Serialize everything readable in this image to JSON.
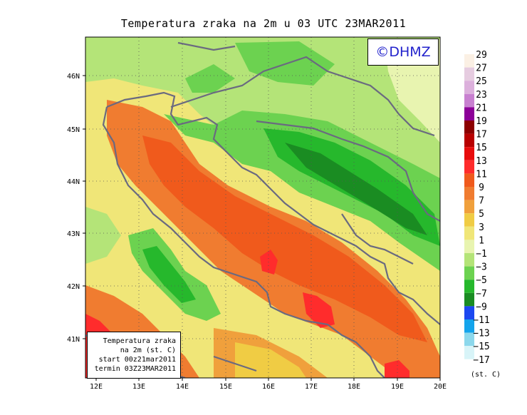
{
  "title": "Temperatura zraka na 2m u 03 UTC 23MAR2011",
  "logo": "©DHMZ",
  "info_box": {
    "line1": "Temperatura zraka",
    "line2": "na 2m (st. C)",
    "line3": "start 00z21mar2011",
    "line4": "termin 03Z23MAR2011"
  },
  "x_ticks": [
    "12E",
    "13E",
    "14E",
    "15E",
    "16E",
    "17E",
    "18E",
    "19E",
    "20E"
  ],
  "y_ticks": [
    "46N",
    "45N",
    "44N",
    "43N",
    "42N",
    "41N"
  ],
  "legend_unit": "(st. C)",
  "legend": [
    {
      "label": "29",
      "color": "#fbf0e4"
    },
    {
      "label": "27",
      "color": "#e6cce0"
    },
    {
      "label": "25",
      "color": "#dcb0dc"
    },
    {
      "label": "23",
      "color": "#c880d0"
    },
    {
      "label": "21",
      "color": "#8c0098"
    },
    {
      "label": "19",
      "color": "#8c0000"
    },
    {
      "label": "17",
      "color": "#b80000"
    },
    {
      "label": "15",
      "color": "#e80c0c"
    },
    {
      "label": "13",
      "color": "#ff2c2c"
    },
    {
      "label": "11",
      "color": "#f05a1c"
    },
    {
      "label": "9",
      "color": "#f07c30"
    },
    {
      "label": "7",
      "color": "#f0a03c"
    },
    {
      "label": "5",
      "color": "#f0cc44"
    },
    {
      "label": "3",
      "color": "#f0e678"
    },
    {
      "label": "1",
      "color": "#e8f4b0"
    },
    {
      "label": "−1",
      "color": "#b4e478"
    },
    {
      "label": "−3",
      "color": "#6cd250"
    },
    {
      "label": "−5",
      "color": "#26b82c"
    },
    {
      "label": "−7",
      "color": "#1a8c22"
    },
    {
      "label": "−9",
      "color": "#1c48f0"
    },
    {
      "label": "−11",
      "color": "#14a4ec"
    },
    {
      "label": "−13",
      "color": "#8cd8ec"
    },
    {
      "label": "−15",
      "color": "#d8f4f8"
    },
    {
      "label": "−17",
      "color": "#ffffff"
    }
  ]
}
